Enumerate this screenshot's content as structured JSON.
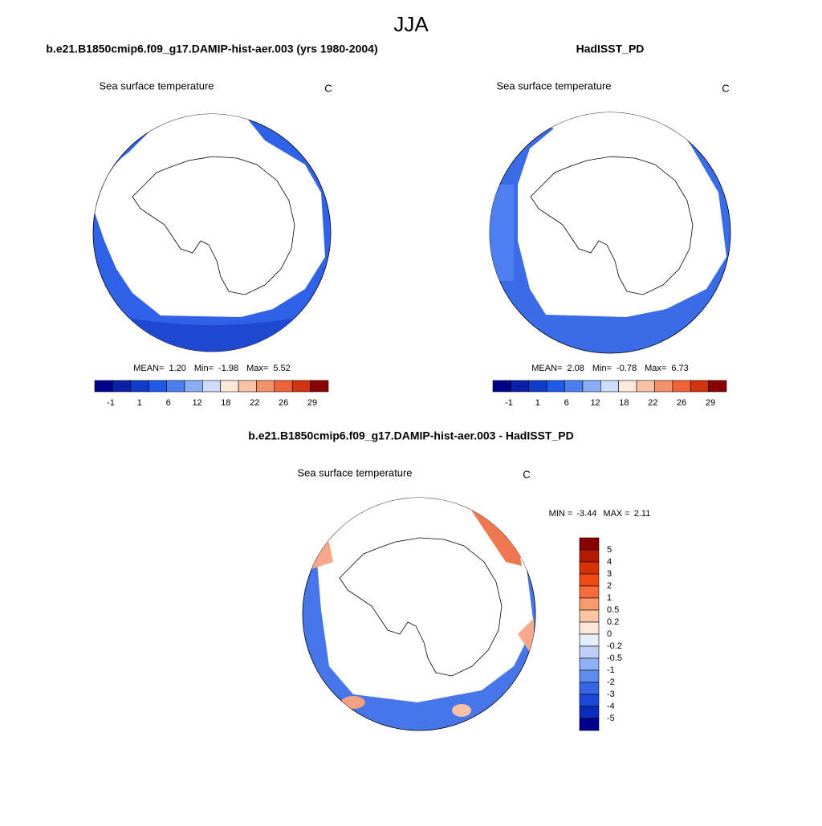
{
  "title": "JJA",
  "panels": [
    {
      "title": "b.e21.B1850cmip6.f09_g17.DAMIP-hist-aer.003 (yrs 1980-2004)",
      "variable": "Sea surface temperature",
      "units": "C",
      "stats": [
        "MEAN=",
        "1.20",
        "Min=",
        "-1.98",
        "Max=",
        "5.52"
      ],
      "colorbar": {
        "labels": [
          "-1",
          "1",
          "6",
          "12",
          "18",
          "22",
          "26",
          "29"
        ],
        "colors": [
          "#00008b",
          "#0a1fa8",
          "#0f3ccc",
          "#1e5be6",
          "#4a7ff0",
          "#8aaef5",
          "#cddcfa",
          "#fde9dc",
          "#f9c2a6",
          "#f4916a",
          "#ee6238",
          "#d33311",
          "#8b0000"
        ]
      }
    },
    {
      "title": "HadISST_PD",
      "variable": "Sea surface temperature",
      "units": "C",
      "stats": [
        "MEAN=",
        "2.08",
        "Min=",
        "-0.78",
        "Max=",
        "6.73"
      ],
      "colorbar": {
        "labels": [
          "-1",
          "1",
          "6",
          "12",
          "18",
          "22",
          "26",
          "29"
        ],
        "colors": [
          "#00008b",
          "#0a1fa8",
          "#0f3ccc",
          "#1e5be6",
          "#4a7ff0",
          "#8aaef5",
          "#cddcfa",
          "#fde9dc",
          "#f9c2a6",
          "#f4916a",
          "#ee6238",
          "#d33311",
          "#8b0000"
        ]
      }
    }
  ],
  "difference": {
    "title": "b.e21.B1850cmip6.f09_g17.DAMIP-hist-aer.003 - HadISST_PD",
    "variable": "Sea surface temperature",
    "units": "C",
    "stats": [
      "MIN =",
      "-3.44",
      "MAX =",
      "2.11"
    ],
    "colorbar": {
      "labels": [
        "5",
        "4",
        "3",
        "2",
        "1",
        "0.5",
        "0.2",
        "0",
        "-0.2",
        "-0.5",
        "-1",
        "-2",
        "-3",
        "-4",
        "-5"
      ],
      "colors": [
        "#8b0000",
        "#b31a00",
        "#d93000",
        "#f04a14",
        "#f76b3a",
        "#f99a6e",
        "#fbc4a3",
        "#fde6d6",
        "#e6eefc",
        "#bcd0f8",
        "#8eb0f4",
        "#5f8ded",
        "#3566e6",
        "#1a48d8",
        "#0a2cb8",
        "#000090"
      ]
    }
  }
}
